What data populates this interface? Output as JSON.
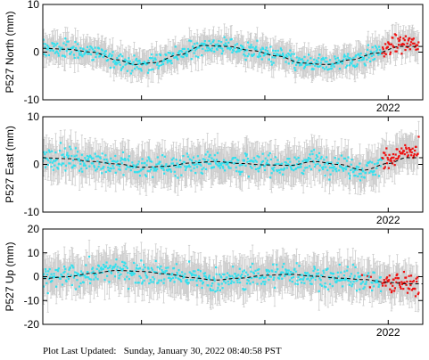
{
  "footer_text": "Plot Last Updated:   Sunday, January 30, 2022 08:40:58 PST",
  "colors": {
    "points_main": "#33e0ee",
    "points_recent": "#ee1111",
    "error_bars": "#cccccc",
    "trend": "#000000"
  },
  "chart_data": [
    {
      "type": "scatter",
      "ylabel": "P527 North (mm)",
      "ylim": [
        -10,
        10
      ],
      "yticks": [
        "10",
        "0",
        "-10"
      ],
      "x_tick_labels": [
        "2022"
      ],
      "xlim": [
        2019.2,
        2022.28
      ],
      "trend": {
        "x": [
          2019.2,
          2019.4,
          2019.6,
          2019.8,
          2019.95,
          2020.1,
          2020.3,
          2020.5,
          2020.7,
          2020.9,
          2021.1,
          2021.3,
          2021.5,
          2021.7,
          2021.9,
          2022.1
        ],
        "y": [
          0.8,
          0.6,
          0.0,
          -1.6,
          -2.6,
          -2.2,
          -0.6,
          1.4,
          1.2,
          0.3,
          -0.8,
          -2.3,
          -2.6,
          -1.6,
          -0.2,
          1.2
        ]
      },
      "noise": 1.3,
      "err": 2.4,
      "recent_from": 2021.95,
      "recent_offset": 0.5
    },
    {
      "type": "scatter",
      "ylabel": "P527 East (mm)",
      "ylim": [
        -10,
        10
      ],
      "yticks": [
        "10",
        "0",
        "-10"
      ],
      "x_tick_labels": [
        "2022"
      ],
      "xlim": [
        2019.2,
        2022.28
      ],
      "trend": {
        "x": [
          2019.2,
          2019.4,
          2019.6,
          2019.8,
          2020.0,
          2020.2,
          2020.4,
          2020.6,
          2020.8,
          2021.0,
          2021.2,
          2021.4,
          2021.6,
          2021.8,
          2022.0,
          2022.15
        ],
        "y": [
          1.4,
          1.2,
          0.6,
          0.1,
          -0.6,
          -0.4,
          0.3,
          0.6,
          0.2,
          -0.1,
          -0.2,
          0.6,
          0.0,
          -1.2,
          0.2,
          1.4
        ]
      },
      "noise": 1.6,
      "err": 3.2,
      "recent_from": 2021.95,
      "recent_offset": 1.0
    },
    {
      "type": "scatter",
      "ylabel": "P527 Up (mm)",
      "ylim": [
        -20,
        20
      ],
      "yticks": [
        "20",
        "10",
        "0",
        "-10",
        "-20"
      ],
      "x_tick_labels": [
        "2022"
      ],
      "xlim": [
        2019.2,
        2022.28
      ],
      "trend": {
        "x": [
          2019.2,
          2019.4,
          2019.6,
          2019.8,
          2020.0,
          2020.2,
          2020.4,
          2020.6,
          2020.8,
          2021.0,
          2021.2,
          2021.4,
          2021.6,
          2021.8,
          2022.0,
          2022.15
        ],
        "y": [
          -0.8,
          0.0,
          1.4,
          2.6,
          2.2,
          1.2,
          -0.4,
          -1.4,
          -0.6,
          0.6,
          1.0,
          0.2,
          -0.6,
          -1.2,
          -2.4,
          -3.0
        ]
      },
      "noise": 3.4,
      "err": 6.5,
      "recent_from": 2021.6,
      "recent_offset": 0.0
    }
  ]
}
